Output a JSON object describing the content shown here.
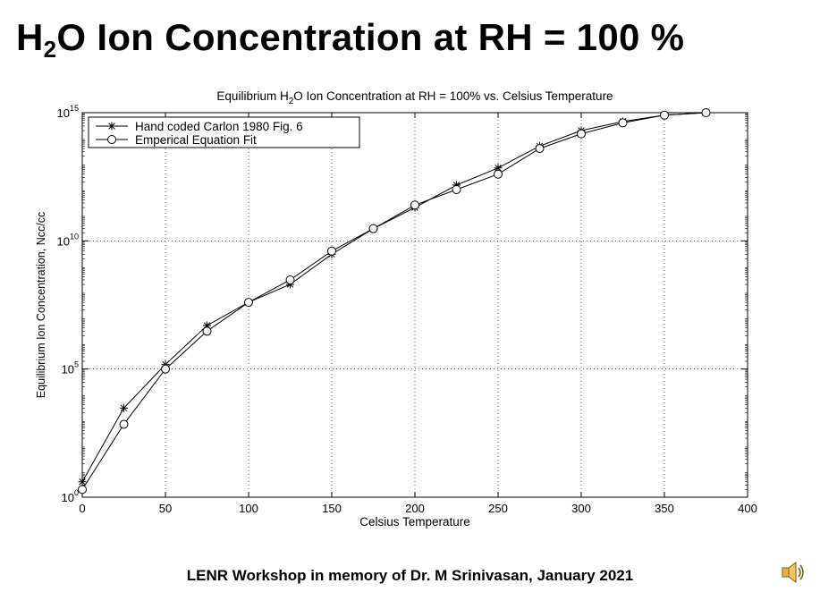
{
  "slide": {
    "title_pre": "H",
    "title_sub": "2",
    "title_post": "O Ion Concentration at RH = 100 %",
    "footer": "LENR Workshop in memory of Dr. M Srinivasan, January 2021",
    "speaker_icon": "speaker-icon"
  },
  "chart_data": {
    "type": "line",
    "title_pre": "Equilibrium H",
    "title_sub": "2",
    "title_post": "O Ion Concentration at RH = 100% vs. Celsius Temperature",
    "xlabel": "Celsius Temperature",
    "ylabel": "Equilibrium Ion Concentration, Ncc/cc",
    "xlim": [
      0,
      400
    ],
    "ylim": [
      1,
      1000000000000000.0
    ],
    "yscale": "log",
    "x_ticks": [
      0,
      50,
      100,
      150,
      200,
      250,
      300,
      350,
      400
    ],
    "y_ticks": [
      {
        "base": "10",
        "exp": "0",
        "value": 1
      },
      {
        "base": "10",
        "exp": "5",
        "value": 100000.0
      },
      {
        "base": "10",
        "exp": "10",
        "value": 10000000000.0
      },
      {
        "base": "10",
        "exp": "15",
        "value": 1000000000000000.0
      }
    ],
    "grid": true,
    "legend_position": "top-left",
    "series": [
      {
        "name": "Hand coded Carlon 1980 Fig. 6",
        "marker": "star",
        "x": [
          0,
          25,
          50,
          75,
          100,
          125,
          150,
          175,
          200,
          225,
          250,
          275,
          300,
          325,
          350,
          375
        ],
        "y": [
          4,
          3000.0,
          150000.0,
          5000000.0,
          40000000.0,
          200000000.0,
          3000000000.0,
          30000000000.0,
          200000000000.0,
          1500000000000.0,
          7000000000000.0,
          50000000000000.0,
          200000000000000.0,
          450000000000000.0,
          800000000000000.0,
          1000000000000000.0
        ]
      },
      {
        "name": "Emperical Equation Fit",
        "marker": "circle",
        "x": [
          0,
          25,
          50,
          75,
          100,
          125,
          150,
          175,
          200,
          225,
          250,
          275,
          300,
          325,
          350,
          375
        ],
        "y": [
          2,
          700.0,
          100000.0,
          3000000.0,
          40000000.0,
          300000000.0,
          4000000000.0,
          30000000000.0,
          250000000000.0,
          1000000000000.0,
          4000000000000.0,
          40000000000000.0,
          150000000000000.0,
          400000000000000.0,
          800000000000000.0,
          1000000000000000.0
        ]
      }
    ],
    "colors": {
      "axis": "#000000",
      "grid": "#000000",
      "line": "#000000"
    }
  }
}
